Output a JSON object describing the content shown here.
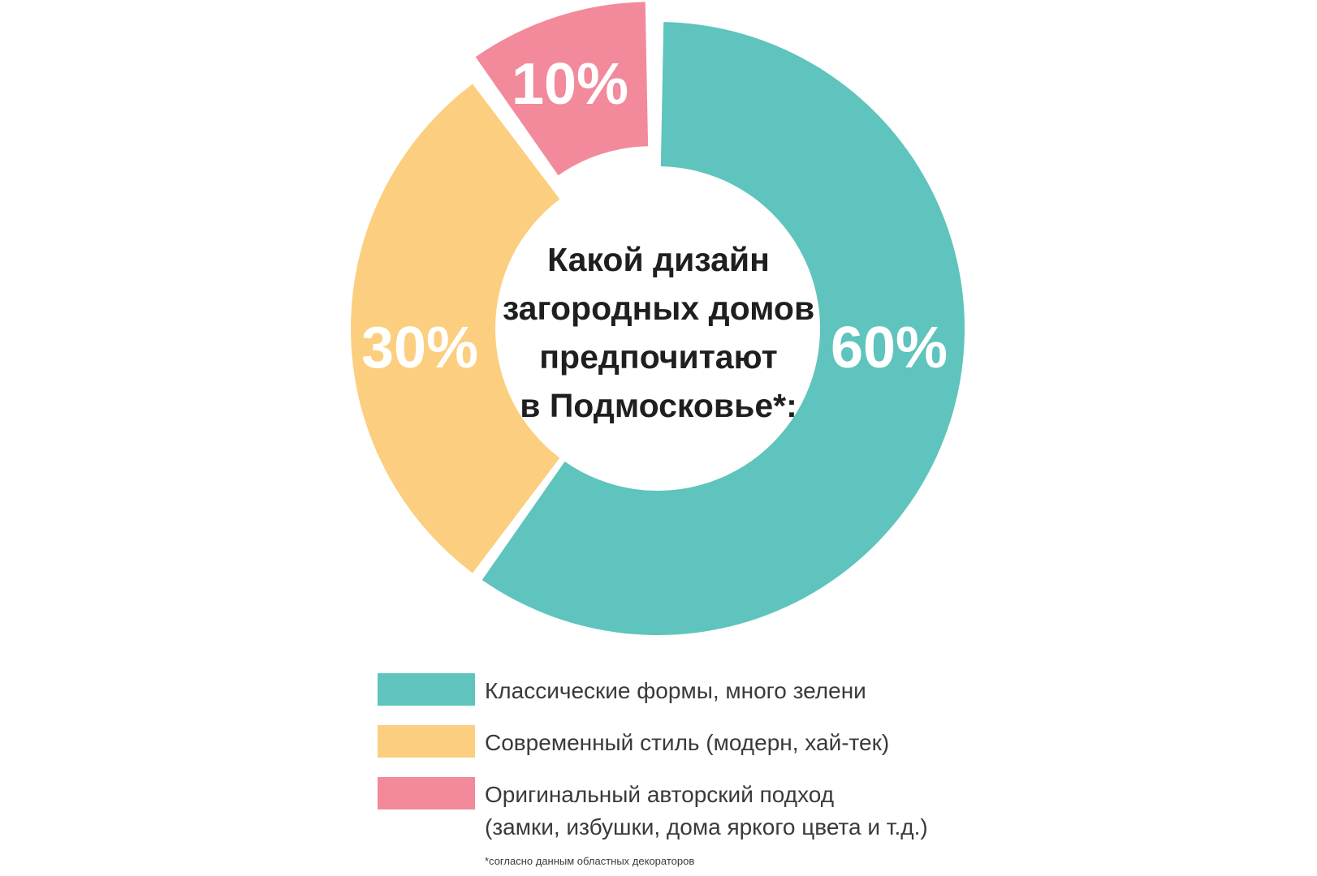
{
  "chart_data": {
    "type": "pie",
    "variant": "donut",
    "title_lines": [
      "Какой дизайн",
      "загородных домов",
      "предпочитают",
      "в Подмосковье*:"
    ],
    "slices": [
      {
        "label_lines": [
          "Классические формы, много зелени"
        ],
        "value": 60,
        "value_label": "60%",
        "color": "#5ec4bd"
      },
      {
        "label_lines": [
          "Современный стиль (модерн, хай-тек)"
        ],
        "value": 30,
        "value_label": "30%",
        "color": "#fbcf7f"
      },
      {
        "label_lines": [
          "Оригинальный авторский подход",
          "(замки, избушки, дома яркого цвета и т.д.)"
        ],
        "value": 10,
        "value_label": "10%",
        "color": "#f28a9b",
        "exploded": true
      }
    ],
    "legend_position": "bottom",
    "footnote": "*согласно данным областных декораторов"
  }
}
